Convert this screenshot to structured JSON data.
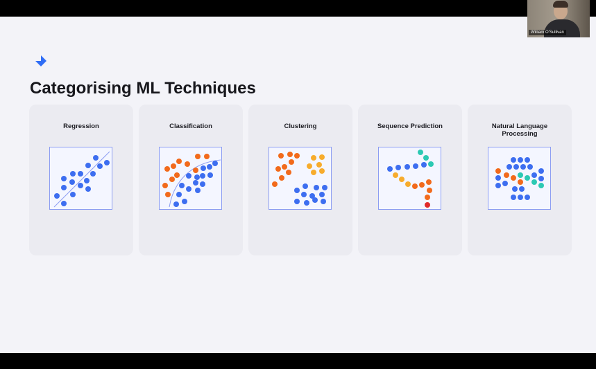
{
  "slide": {
    "title": "Categorising ML Techniques"
  },
  "cards": [
    {
      "label": "Regression",
      "icon": "regression-scatter-icon"
    },
    {
      "label": "Classification",
      "icon": "classification-scatter-icon"
    },
    {
      "label": "Clustering",
      "icon": "clustering-scatter-icon"
    },
    {
      "label": "Sequence Prediction",
      "icon": "sequence-prediction-icon"
    },
    {
      "label": "Natural Language Processing",
      "icon": "nlp-network-icon"
    }
  ],
  "video": {
    "participant_name": "William O'Sullivan"
  },
  "colors": {
    "background": "#f3f3f8",
    "card": "#ebebf1",
    "blue": "#3d6ef0",
    "orange": "#f26a1b",
    "amber": "#f7ac2d",
    "teal": "#2cc9b3",
    "red": "#e02a2a",
    "logo": "#2f6df6"
  }
}
